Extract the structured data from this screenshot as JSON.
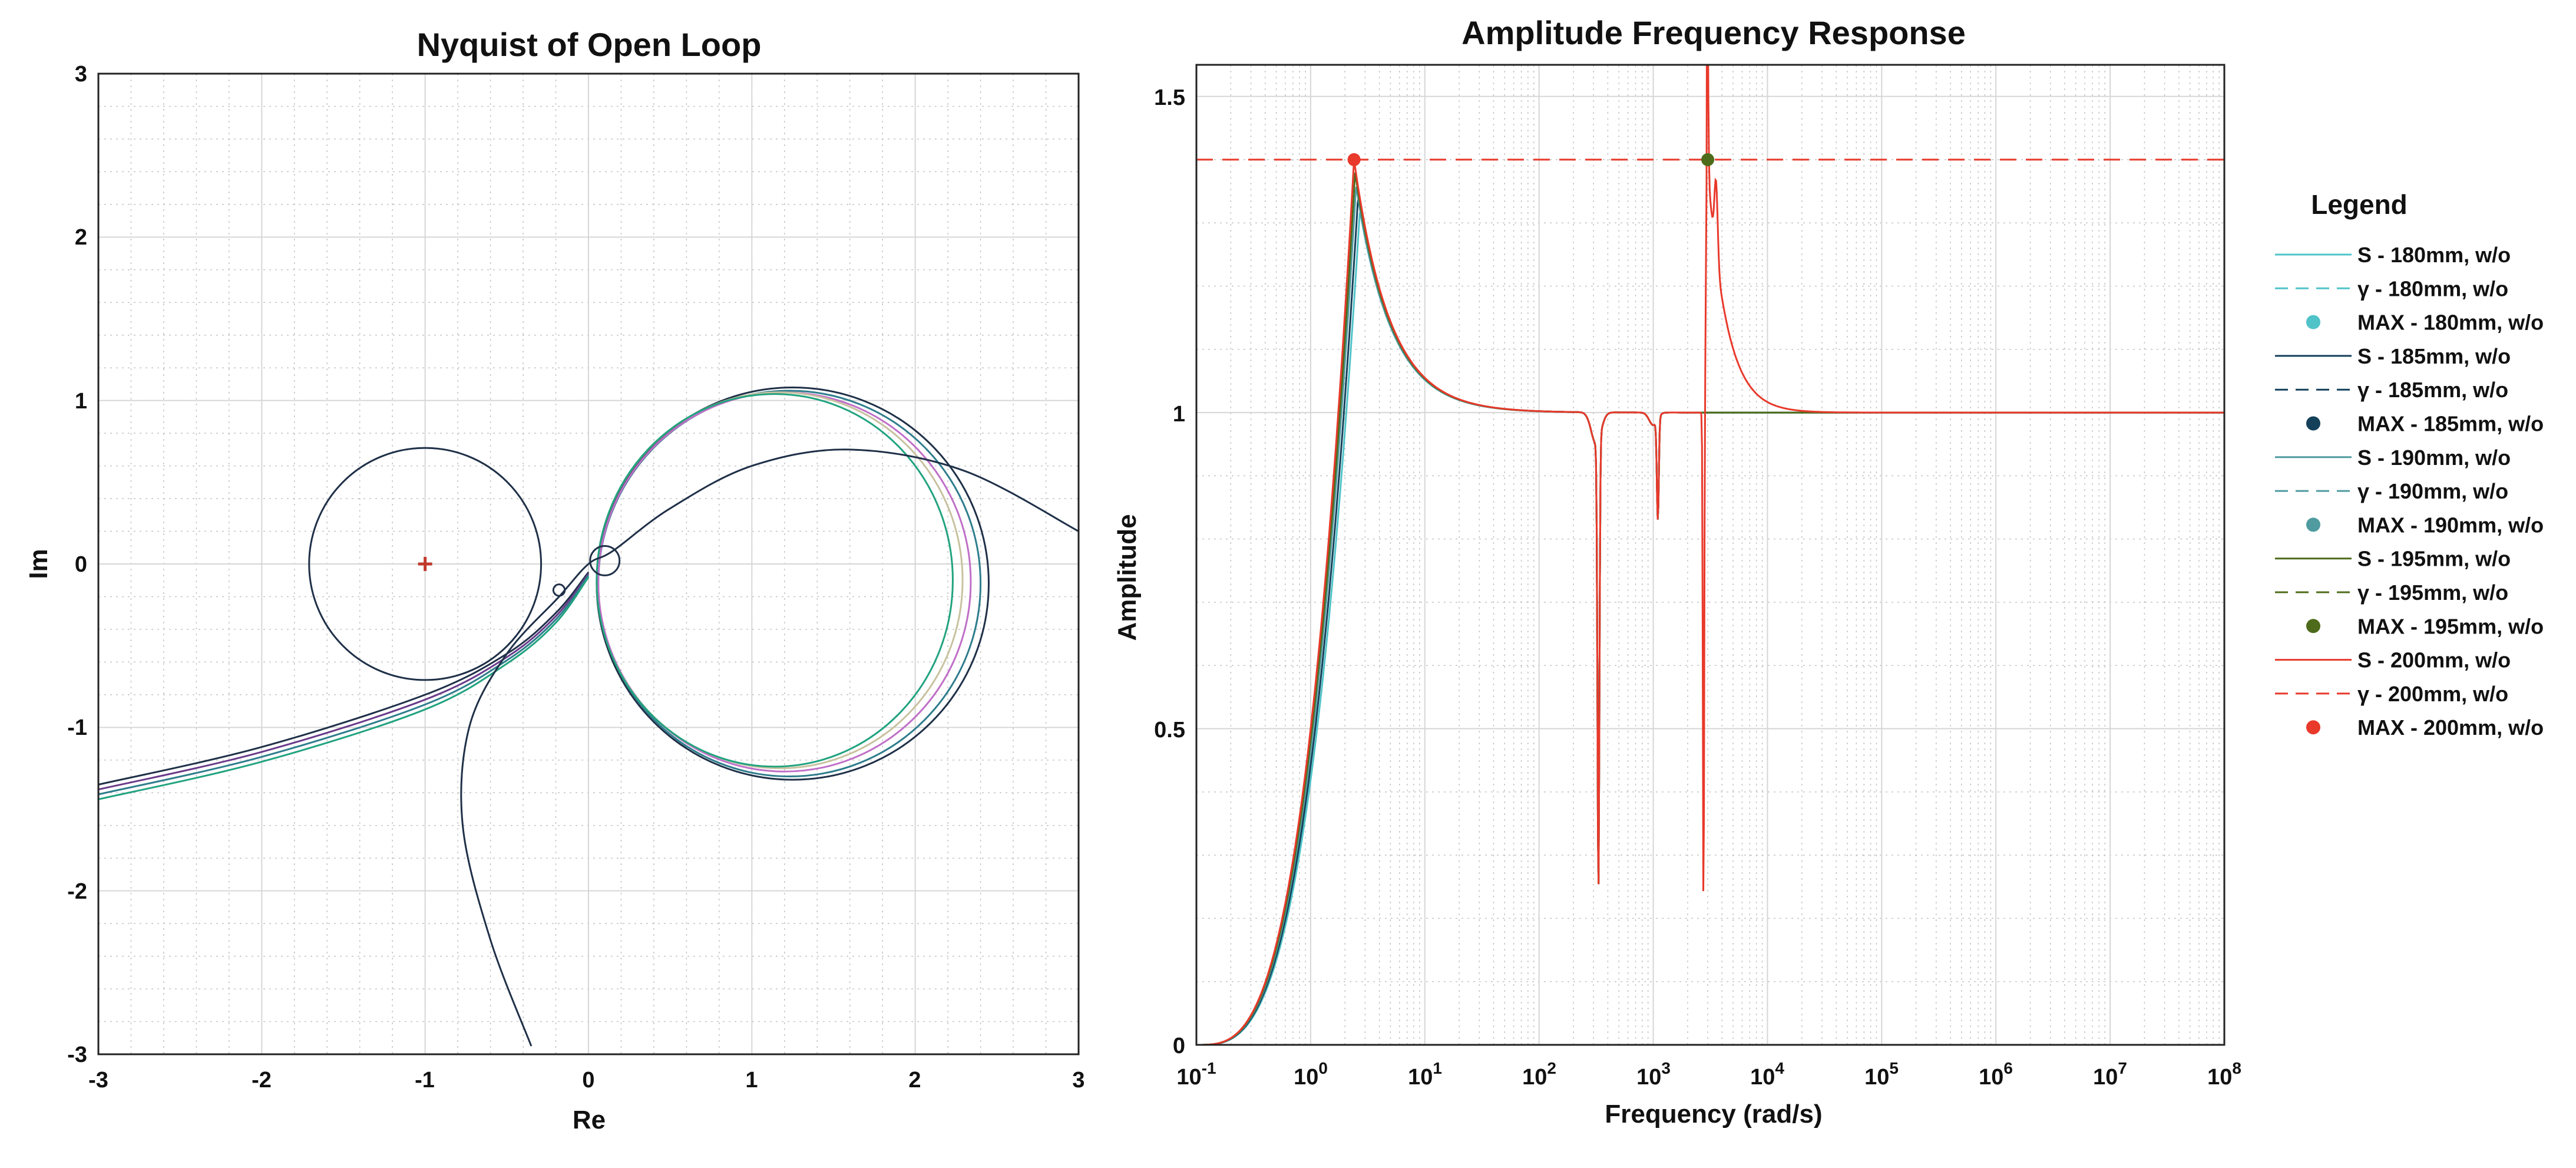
{
  "chart_data": [
    {
      "type": "line",
      "title": "Nyquist of Open Loop",
      "xlabel": "Re",
      "ylabel": "Im",
      "xlim": [
        -3,
        3
      ],
      "ylim": [
        -3,
        3
      ],
      "xticks": [
        "-3",
        "-2",
        "-1",
        "0",
        "1",
        "2",
        "3"
      ],
      "yticks": [
        "-3",
        "-2",
        "-1",
        "0",
        "1",
        "2",
        "3"
      ],
      "grid": true,
      "critical_point": {
        "x": -1,
        "y": 0,
        "marker": "+",
        "color": "#c0392b"
      },
      "reference_circle": {
        "center": [
          -1,
          0
        ],
        "radius": 0.71
      },
      "series": [
        {
          "color": "#1f3048",
          "large_loop": {
            "center": [
              1.25,
              -0.12
            ],
            "rx": 1.2,
            "ry": 1.2
          }
        },
        {
          "color": "#2e7d8c",
          "large_loop": {
            "center": [
              1.23,
              -0.12
            ],
            "rx": 1.17,
            "ry": 1.18
          }
        },
        {
          "color": "#c06fc8",
          "large_loop": {
            "center": [
              1.2,
              -0.11
            ],
            "rx": 1.14,
            "ry": 1.16
          }
        },
        {
          "color": "#c8c2a0",
          "large_loop": {
            "center": [
              1.17,
              -0.1
            ],
            "rx": 1.12,
            "ry": 1.15
          }
        },
        {
          "color": "#21a37f",
          "large_loop": {
            "center": [
              1.14,
              -0.1
            ],
            "rx": 1.09,
            "ry": 1.14
          }
        }
      ],
      "tail_curves": [
        {
          "color": "#1f3048",
          "points": [
            [
              -3,
              -1.35
            ],
            [
              -2,
              -1.12
            ],
            [
              -1,
              -0.8
            ],
            [
              -0.5,
              -0.55
            ],
            [
              -0.2,
              -0.3
            ],
            [
              0,
              -0.05
            ]
          ]
        },
        {
          "color": "#6a3a8a",
          "points": [
            [
              -3,
              -1.38
            ],
            [
              -2,
              -1.15
            ],
            [
              -1,
              -0.83
            ],
            [
              -0.5,
              -0.57
            ],
            [
              -0.2,
              -0.32
            ],
            [
              0,
              -0.06
            ]
          ]
        },
        {
          "color": "#2e7d8c",
          "points": [
            [
              -3,
              -1.41
            ],
            [
              -2,
              -1.18
            ],
            [
              -1,
              -0.86
            ],
            [
              -0.5,
              -0.59
            ],
            [
              -0.2,
              -0.34
            ],
            [
              0,
              -0.07
            ]
          ]
        },
        {
          "color": "#21a37f",
          "points": [
            [
              -3,
              -1.44
            ],
            [
              -2,
              -1.21
            ],
            [
              -1,
              -0.89
            ],
            [
              -0.5,
              -0.61
            ],
            [
              -0.2,
              -0.36
            ],
            [
              0,
              -0.08
            ]
          ]
        }
      ],
      "secondary_curve": {
        "color": "#1f3048",
        "points": [
          [
            -0.35,
            -2.95
          ],
          [
            -0.6,
            -2.3
          ],
          [
            -0.77,
            -1.6
          ],
          [
            -0.73,
            -1.0
          ],
          [
            -0.5,
            -0.55
          ],
          [
            -0.18,
            -0.2
          ],
          [
            0,
            0
          ],
          [
            0.15,
            0.08
          ],
          [
            0.5,
            0.34
          ],
          [
            1.0,
            0.6
          ],
          [
            1.6,
            0.7
          ],
          [
            2.3,
            0.57
          ],
          [
            3.0,
            0.2
          ]
        ],
        "small_loops": [
          {
            "center": [
              0.1,
              0.02
            ],
            "r": 0.09
          },
          {
            "center": [
              -0.18,
              -0.16
            ],
            "r": 0.035
          }
        ]
      }
    },
    {
      "type": "line",
      "title": "Amplitude Frequency Response",
      "xlabel": "Frequency (rad/s)",
      "ylabel": "Amplitude",
      "xscale": "log",
      "xlim": [
        0.1,
        100000000
      ],
      "ylim": [
        0,
        1.55
      ],
      "xtick_exponents": [
        "-1",
        "0",
        "1",
        "2",
        "3",
        "4",
        "5",
        "6",
        "7",
        "8"
      ],
      "yticks": [
        "0",
        "0.5",
        "1",
        "1.5"
      ],
      "grid": true,
      "threshold_line": {
        "y": 1.4,
        "color": "#e8392b",
        "style": "dashed"
      },
      "max_points": [
        {
          "x": 2.4,
          "y": 1.4,
          "color": "#e8392b"
        },
        {
          "x": 3000,
          "y": 1.4,
          "color": "#4d6b1a"
        }
      ],
      "series": [
        {
          "color": "#4fc3c8",
          "peak": 1.32,
          "peak_x": 2.7,
          "resonance": true
        },
        {
          "color": "#14405a",
          "peak": 1.34,
          "peak_x": 2.6,
          "resonance": true
        },
        {
          "color": "#4f9ba0",
          "peak": 1.36,
          "peak_x": 2.5,
          "resonance": true
        },
        {
          "color": "#4d6b1a",
          "peak": 1.38,
          "peak_x": 2.45,
          "resonance": true
        },
        {
          "color": "#e8392b",
          "peak": 1.4,
          "peak_x": 2.4,
          "resonance": true,
          "extra_spike": true
        }
      ],
      "legend": {
        "title": "Legend",
        "position": "right",
        "entries": [
          {
            "label": "S - 180mm, w/o",
            "style": "solid",
            "color": "#4fc3c8"
          },
          {
            "label": "γ - 180mm, w/o",
            "style": "dashed",
            "color": "#4fc3c8"
          },
          {
            "label": "MAX - 180mm, w/o",
            "style": "dot",
            "color": "#4fc3c8"
          },
          {
            "label": "S - 185mm, w/o",
            "style": "solid",
            "color": "#14405a"
          },
          {
            "label": "γ - 185mm, w/o",
            "style": "dashed",
            "color": "#14405a"
          },
          {
            "label": "MAX - 185mm, w/o",
            "style": "dot",
            "color": "#14405a"
          },
          {
            "label": "S - 190mm, w/o",
            "style": "solid",
            "color": "#4f9ba0"
          },
          {
            "label": "γ - 190mm, w/o",
            "style": "dashed",
            "color": "#4f9ba0"
          },
          {
            "label": "MAX - 190mm, w/o",
            "style": "dot",
            "color": "#4f9ba0"
          },
          {
            "label": "S - 195mm, w/o",
            "style": "solid",
            "color": "#4d6b1a"
          },
          {
            "label": "γ - 195mm, w/o",
            "style": "dashed",
            "color": "#4d6b1a"
          },
          {
            "label": "MAX - 195mm, w/o",
            "style": "dot",
            "color": "#4d6b1a"
          },
          {
            "label": "S - 200mm, w/o",
            "style": "solid",
            "color": "#e8392b"
          },
          {
            "label": "γ - 200mm, w/o",
            "style": "dashed",
            "color": "#e8392b"
          },
          {
            "label": "MAX - 200mm, w/o",
            "style": "dot",
            "color": "#e8392b"
          }
        ]
      }
    }
  ]
}
